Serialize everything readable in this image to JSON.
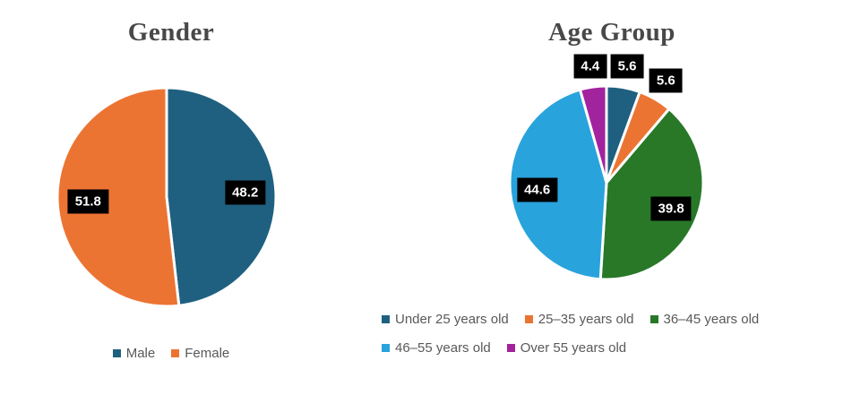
{
  "chart_data": [
    {
      "type": "pie",
      "title": "Gender",
      "labels": [
        "Male",
        "Female"
      ],
      "values": [
        48.2,
        51.8
      ],
      "colors": [
        "#1F6080",
        "#EC7433"
      ],
      "start_angle": "top",
      "direction": "clockwise",
      "data_labels": [
        "48.2",
        "51.8"
      ],
      "data_label_style": "black box, white bold text",
      "legend_position": "bottom"
    },
    {
      "type": "pie",
      "title": "Age Group",
      "labels": [
        "Under 25 years old",
        "25–35 years old",
        "36–45 years old",
        "46–55 years old",
        "Over 55 years old"
      ],
      "values": [
        5.6,
        5.6,
        39.8,
        44.6,
        4.4
      ],
      "colors": [
        "#1F6080",
        "#EC7433",
        "#287828",
        "#29A3DC",
        "#A2239E"
      ],
      "start_angle": "top",
      "direction": "clockwise",
      "data_labels": [
        "5.6",
        "5.6",
        "39.8",
        "44.6",
        "4.4"
      ],
      "data_label_style": "black box, white bold text; small slices labeled outside, large slices inside",
      "legend_position": "bottom"
    }
  ],
  "style": {
    "background": "#ffffff",
    "title_color": "#484848",
    "legend_text_color": "#595959",
    "label_box_background": "#000000",
    "label_text_color": "#ffffff",
    "slice_separator_color": "#ffffff"
  }
}
